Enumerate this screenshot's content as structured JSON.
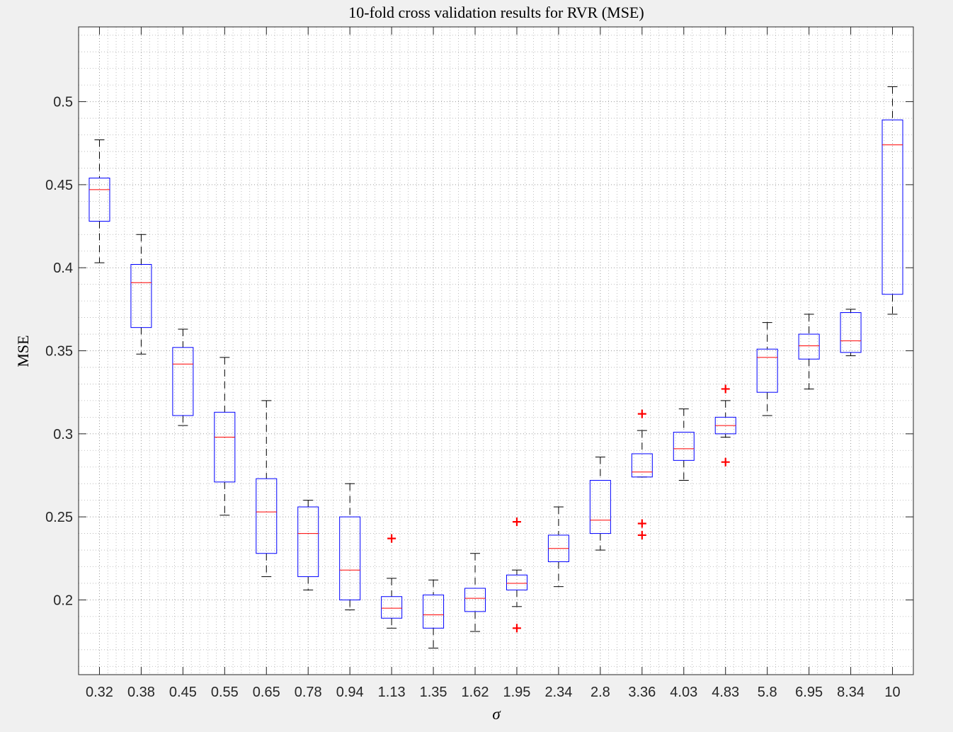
{
  "chart_data": {
    "type": "boxplot",
    "title": "10-fold cross validation results for RVR (MSE)",
    "xlabel": "σ",
    "ylabel": "MSE",
    "ylim": [
      0.155,
      0.545
    ],
    "yticks": [
      0.2,
      0.25,
      0.3,
      0.35,
      0.4,
      0.45,
      0.5
    ],
    "grid": "major and minor dotted",
    "colors": {
      "box": "#0000ff",
      "median": "#ff0000",
      "whisker": "#000000",
      "outlier": "#ff0000",
      "grid": "#b0b0b0",
      "axes_bg": "#ffffff"
    },
    "categories": [
      "0.32",
      "0.38",
      "0.45",
      "0.55",
      "0.65",
      "0.78",
      "0.94",
      "1.13",
      "1.35",
      "1.62",
      "1.95",
      "2.34",
      "2.8",
      "3.36",
      "4.03",
      "4.83",
      "5.8",
      "6.95",
      "8.34",
      "10"
    ],
    "boxes": [
      {
        "min": 0.403,
        "q1": 0.428,
        "median": 0.447,
        "q3": 0.454,
        "max": 0.477,
        "outliers": []
      },
      {
        "min": 0.348,
        "q1": 0.364,
        "median": 0.391,
        "q3": 0.402,
        "max": 0.42,
        "outliers": []
      },
      {
        "min": 0.305,
        "q1": 0.311,
        "median": 0.342,
        "q3": 0.352,
        "max": 0.363,
        "outliers": []
      },
      {
        "min": 0.251,
        "q1": 0.271,
        "median": 0.298,
        "q3": 0.313,
        "max": 0.346,
        "outliers": []
      },
      {
        "min": 0.214,
        "q1": 0.228,
        "median": 0.253,
        "q3": 0.273,
        "max": 0.32,
        "outliers": []
      },
      {
        "min": 0.206,
        "q1": 0.214,
        "median": 0.24,
        "q3": 0.256,
        "max": 0.26,
        "outliers": []
      },
      {
        "min": 0.194,
        "q1": 0.2,
        "median": 0.218,
        "q3": 0.25,
        "max": 0.27,
        "outliers": []
      },
      {
        "min": 0.183,
        "q1": 0.189,
        "median": 0.195,
        "q3": 0.202,
        "max": 0.213,
        "outliers": [
          0.237
        ]
      },
      {
        "min": 0.171,
        "q1": 0.183,
        "median": 0.191,
        "q3": 0.203,
        "max": 0.212,
        "outliers": []
      },
      {
        "min": 0.181,
        "q1": 0.193,
        "median": 0.201,
        "q3": 0.207,
        "max": 0.228,
        "outliers": []
      },
      {
        "min": 0.196,
        "q1": 0.206,
        "median": 0.21,
        "q3": 0.215,
        "max": 0.218,
        "outliers": [
          0.247,
          0.183
        ]
      },
      {
        "min": 0.208,
        "q1": 0.223,
        "median": 0.231,
        "q3": 0.239,
        "max": 0.256,
        "outliers": []
      },
      {
        "min": 0.23,
        "q1": 0.24,
        "median": 0.248,
        "q3": 0.272,
        "max": 0.286,
        "outliers": []
      },
      {
        "min": 0.274,
        "q1": 0.274,
        "median": 0.277,
        "q3": 0.288,
        "max": 0.302,
        "outliers": [
          0.312,
          0.246,
          0.239
        ]
      },
      {
        "min": 0.272,
        "q1": 0.284,
        "median": 0.291,
        "q3": 0.301,
        "max": 0.315,
        "outliers": []
      },
      {
        "min": 0.298,
        "q1": 0.3,
        "median": 0.305,
        "q3": 0.31,
        "max": 0.32,
        "outliers": [
          0.327,
          0.283
        ]
      },
      {
        "min": 0.311,
        "q1": 0.325,
        "median": 0.346,
        "q3": 0.351,
        "max": 0.367,
        "outliers": []
      },
      {
        "min": 0.327,
        "q1": 0.345,
        "median": 0.353,
        "q3": 0.36,
        "max": 0.372,
        "outliers": []
      },
      {
        "min": 0.347,
        "q1": 0.349,
        "median": 0.356,
        "q3": 0.373,
        "max": 0.375,
        "outliers": []
      },
      {
        "min": 0.372,
        "q1": 0.384,
        "median": 0.474,
        "q3": 0.489,
        "max": 0.509,
        "outliers": []
      }
    ]
  }
}
